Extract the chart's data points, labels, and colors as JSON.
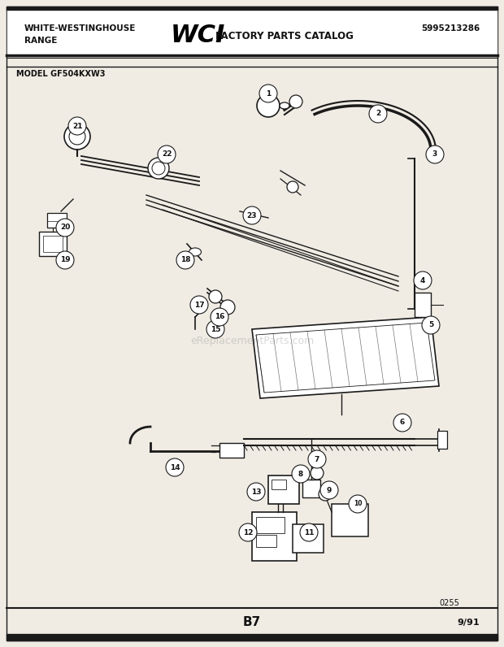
{
  "title_left1": "WHITE-WESTINGHOUSE",
  "title_left2": "RANGE",
  "title_logo": "WCI",
  "title_catalog": "FACTORY PARTS CATALOG",
  "title_partno": "5995213286",
  "model_text": "MODEL GF504KXW3",
  "footer_center": "B7",
  "footer_right": "9/91",
  "diagram_ref": "0255",
  "watermark": "eReplacementParts.com",
  "bg_color": "#f0ece4",
  "line_color": "#1a1a1a",
  "text_color": "#111111",
  "header_bg": "#f0ece4",
  "page_bg": "#f0ece4"
}
